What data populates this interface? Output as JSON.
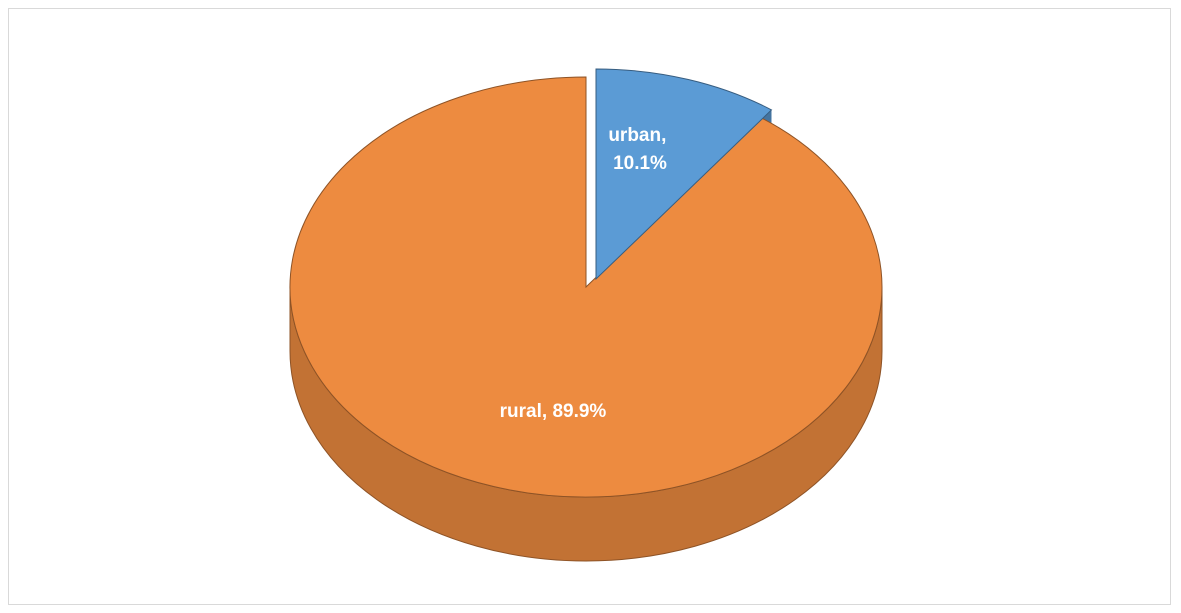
{
  "chart_data": {
    "type": "pie",
    "title": "",
    "style": "3d-exploded",
    "categories": [
      "rural",
      "urban"
    ],
    "values": [
      89.9,
      10.1
    ],
    "unit": "%",
    "colors": [
      "#ed8b40",
      "#5b9bd5"
    ],
    "exploded": [
      "urban"
    ],
    "legend": "none",
    "slices": [
      {
        "label_line1": "rural, 89.9%",
        "label_line2": ""
      },
      {
        "label_line1": "urban,",
        "label_line2": "10.1%"
      }
    ]
  }
}
